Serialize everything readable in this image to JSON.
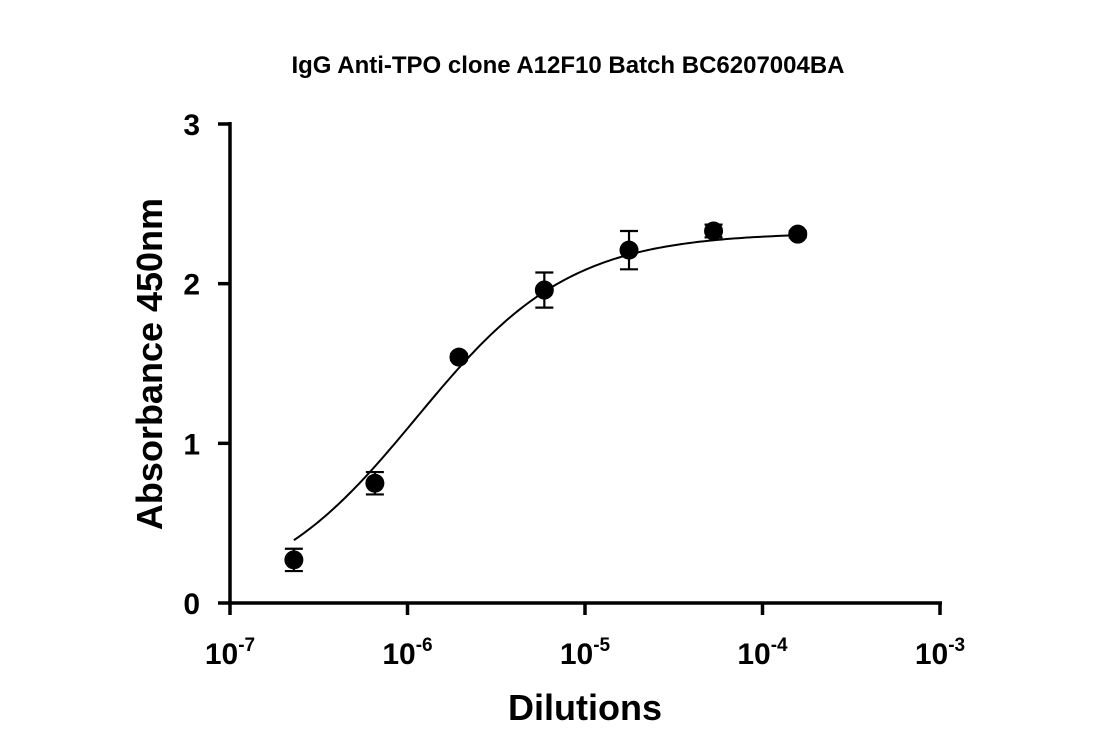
{
  "chart_data": {
    "type": "scatter",
    "title": "IgG Anti-TPO clone A12F10 Batch BC6207004BA",
    "xlabel": "Dilutions",
    "ylabel": "Absorbance 450nm",
    "x_scale": "log",
    "xlim": [
      1e-07,
      0.001
    ],
    "ylim": [
      0,
      3
    ],
    "x_ticks": [
      {
        "base": "10",
        "exp": "-7",
        "value": 1e-07
      },
      {
        "base": "10",
        "exp": "-6",
        "value": 1e-06
      },
      {
        "base": "10",
        "exp": "-5",
        "value": 1e-05
      },
      {
        "base": "10",
        "exp": "-4",
        "value": 0.0001
      },
      {
        "base": "10",
        "exp": "-3",
        "value": 0.001
      }
    ],
    "y_ticks": [
      {
        "label": "0",
        "value": 0
      },
      {
        "label": "1",
        "value": 1
      },
      {
        "label": "2",
        "value": 2
      },
      {
        "label": "3",
        "value": 3
      }
    ],
    "grid": false,
    "series": [
      {
        "points": [
          {
            "x": 2.29e-07,
            "y": 0.27,
            "err": 0.07
          },
          {
            "x": 6.55e-07,
            "y": 0.75,
            "err": 0.07
          },
          {
            "x": 1.95e-06,
            "y": 1.54,
            "err": 0.02
          },
          {
            "x": 5.9e-06,
            "y": 1.96,
            "err": 0.11
          },
          {
            "x": 1.77e-05,
            "y": 2.21,
            "err": 0.12
          },
          {
            "x": 5.3e-05,
            "y": 2.33,
            "err": 0.04
          },
          {
            "x": 0.000158,
            "y": 2.31,
            "err": 0.02
          }
        ],
        "fit": {
          "model": "four-parameter logistic",
          "bottom": 0.0,
          "top": 2.32,
          "log_ec50": -5.95,
          "hill_slope": 1.0
        }
      }
    ]
  }
}
